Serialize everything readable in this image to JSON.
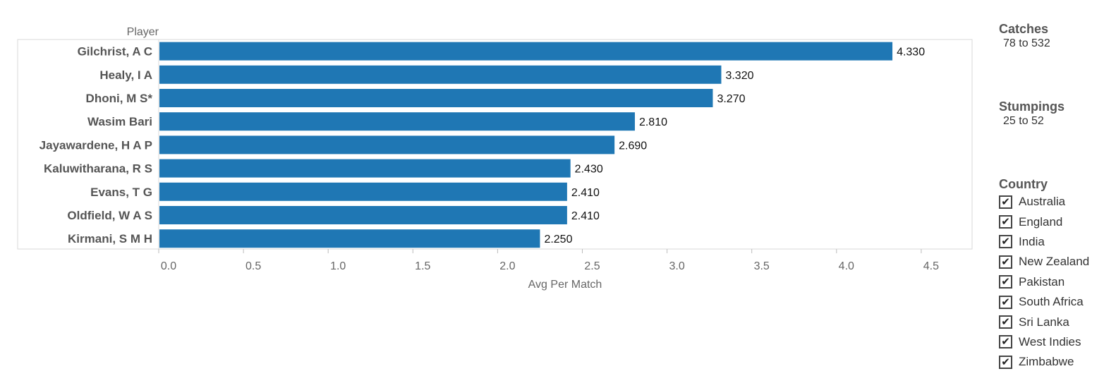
{
  "chart_data": {
    "type": "bar",
    "orientation": "horizontal",
    "row_header": "Player",
    "xlabel": "Avg Per Match",
    "xlim": [
      0,
      4.8
    ],
    "xticks": [
      "0.0",
      "0.5",
      "1.0",
      "1.5",
      "2.0",
      "2.5",
      "3.0",
      "3.5",
      "4.0",
      "4.5"
    ],
    "categories": [
      "Gilchrist, A C",
      "Healy, I A",
      "Dhoni, M S*",
      "Wasim Bari",
      "Jayawardene, H A P",
      "Kaluwitharana, R S",
      "Evans, T G",
      "Oldfield, W A S",
      "Kirmani, S M H"
    ],
    "values": [
      4.33,
      3.32,
      3.27,
      2.81,
      2.69,
      2.43,
      2.41,
      2.41,
      2.25
    ],
    "value_labels": [
      "4.330",
      "3.320",
      "3.270",
      "2.810",
      "2.690",
      "2.430",
      "2.410",
      "2.410",
      "2.250"
    ],
    "bar_color": "#1f77b4",
    "grid": false
  },
  "filters": {
    "catches": {
      "title": "Catches",
      "range": "78 to 532"
    },
    "stumpings": {
      "title": "Stumpings",
      "range": "25 to 52"
    },
    "country": {
      "title": "Country",
      "check_glyph": "✔",
      "items": [
        "Australia",
        "England",
        "India",
        "New Zealand",
        "Pakistan",
        "South Africa",
        "Sri Lanka",
        "West Indies",
        "Zimbabwe"
      ]
    }
  }
}
